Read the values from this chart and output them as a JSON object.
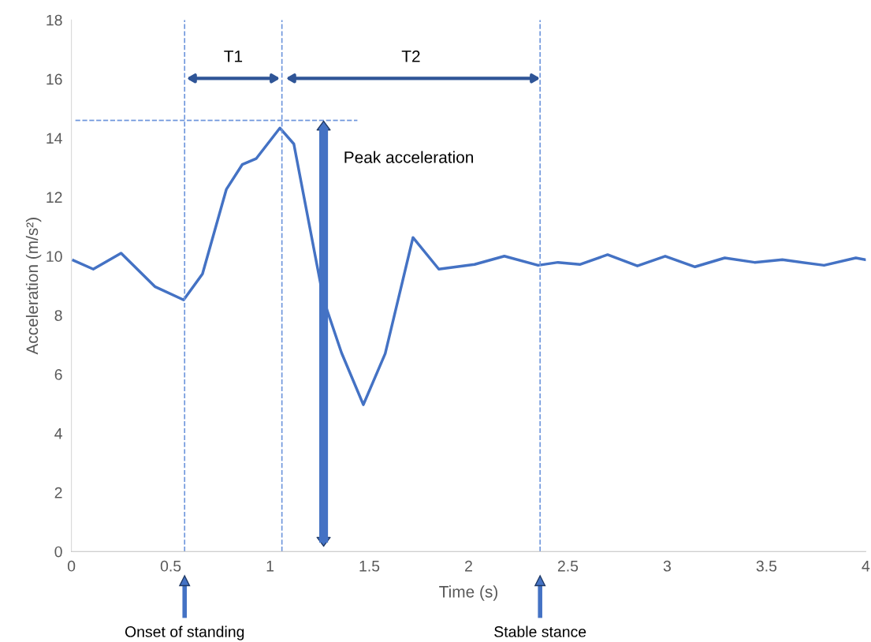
{
  "chart_data": {
    "type": "line",
    "xlabel": "Time (s)",
    "ylabel": "Acceleration (m/s²)",
    "xlim": [
      0,
      4
    ],
    "ylim": [
      0,
      18
    ],
    "xticks": [
      0,
      0.5,
      1,
      1.5,
      2,
      2.5,
      3,
      3.5,
      4
    ],
    "yticks": [
      0,
      2,
      4,
      6,
      8,
      10,
      12,
      14,
      16,
      18
    ],
    "grid": false,
    "legend": false,
    "marker": "none",
    "line_style": "solid",
    "series": [
      {
        "color": "#4472c4",
        "x": [
          0.01,
          0.11,
          0.25,
          0.42,
          0.565,
          0.66,
          0.78,
          0.86,
          0.93,
          1.05,
          1.12,
          1.27,
          1.36,
          1.47,
          1.58,
          1.72,
          1.85,
          2.03,
          2.18,
          2.35,
          2.45,
          2.56,
          2.7,
          2.85,
          2.99,
          3.14,
          3.29,
          3.44,
          3.58,
          3.79,
          3.95,
          4.0
        ],
        "values": [
          9.86,
          9.56,
          10.1,
          8.97,
          8.52,
          9.4,
          12.26,
          13.1,
          13.3,
          14.34,
          13.8,
          8.52,
          6.73,
          4.97,
          6.7,
          10.63,
          9.56,
          9.72,
          10.0,
          9.69,
          9.79,
          9.72,
          10.05,
          9.67,
          10.0,
          9.64,
          9.94,
          9.79,
          9.88,
          9.69,
          9.94,
          9.88
        ]
      }
    ],
    "ref_lines": [
      {
        "axis": "x",
        "value": 0.57,
        "color": "#6f96dc",
        "line_style": "dashed"
      },
      {
        "axis": "x",
        "value": 1.06,
        "color": "#6f96dc",
        "line_style": "dashed"
      },
      {
        "axis": "x",
        "value": 2.36,
        "color": "#6f96dc",
        "line_style": "dashed"
      },
      {
        "axis": "y",
        "value": 14.6,
        "color": "#6f96dc",
        "line_style": "dashed"
      }
    ],
    "annotations": [
      "T1",
      "T2",
      {
        "text": "Peak acceleration",
        "x": 1.27,
        "y": 14.6
      },
      {
        "text": "Onset of standing",
        "x": 0.57
      },
      {
        "text": "Stable stance",
        "x": 2.36
      }
    ]
  }
}
